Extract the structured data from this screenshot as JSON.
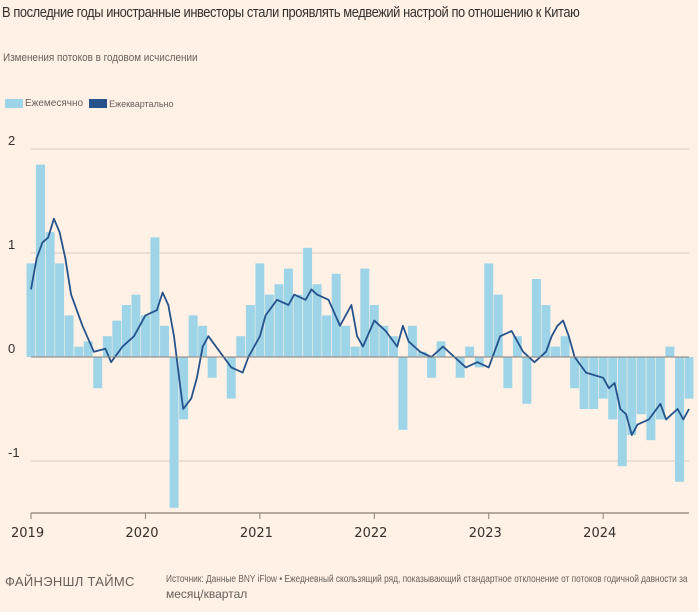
{
  "title": "В последние годы иностранные инвесторы стали проявлять медвежий настрой по отношению к Китаю",
  "subtitle": "Изменения потоков в годовом исчислении",
  "legend": {
    "monthly": "Ежемесячно",
    "quarterly": "Ежеквартально"
  },
  "footer": {
    "logo": "ФАЙНЭНШЛ ТАЙМС",
    "source_line1": "Источник: Данные BNY iFlow • Ежедневный скользящий ряд, показывающий стандартное отклонение от потоков годичной давности за",
    "source_line2": "месяц/квартал"
  },
  "colors": {
    "monthly": "#9dd4e8",
    "quarterly": "#26538b",
    "background": "#fff1e5",
    "grid": "#d9ccc1"
  },
  "chart_data": {
    "type": "bar+line",
    "title": "В последние годы иностранные инвесторы стали проявлять медвежий настрой по отношению к Китаю",
    "subtitle": "Изменения потоков в годовом исчислении",
    "xlabel": "",
    "ylabel": "",
    "xlim": [
      2019.0,
      2024.75
    ],
    "ylim": [
      -1.5,
      2
    ],
    "y_ticks": [
      2,
      1,
      0,
      -1
    ],
    "y_tick_labels": [
      "2",
      "1",
      "0",
      "-1"
    ],
    "x_ticks": [
      2019,
      2020,
      2021,
      2022,
      2023,
      2024
    ],
    "x_tick_labels": [
      "2019",
      "2020",
      "2021",
      "2022",
      "2023",
      "2024"
    ],
    "grid": true,
    "legend_position": "top-left",
    "series": [
      {
        "name": "Ежемесячно",
        "type": "bar",
        "x": [
          2019.0,
          2019.083,
          2019.167,
          2019.25,
          2019.333,
          2019.417,
          2019.5,
          2019.583,
          2019.667,
          2019.75,
          2019.833,
          2019.917,
          2020.0,
          2020.083,
          2020.167,
          2020.25,
          2020.333,
          2020.417,
          2020.5,
          2020.583,
          2020.667,
          2020.75,
          2020.833,
          2020.917,
          2021.0,
          2021.083,
          2021.167,
          2021.25,
          2021.333,
          2021.417,
          2021.5,
          2021.583,
          2021.667,
          2021.75,
          2021.833,
          2021.917,
          2022.0,
          2022.083,
          2022.167,
          2022.25,
          2022.333,
          2022.417,
          2022.5,
          2022.583,
          2022.667,
          2022.75,
          2022.833,
          2022.917,
          2023.0,
          2023.083,
          2023.167,
          2023.25,
          2023.333,
          2023.417,
          2023.5,
          2023.583,
          2023.667,
          2023.75,
          2023.833,
          2023.917,
          2024.0,
          2024.083,
          2024.167,
          2024.25,
          2024.333,
          2024.417,
          2024.5,
          2024.583,
          2024.667,
          2024.75
        ],
        "values": [
          0.9,
          1.85,
          1.2,
          0.9,
          0.4,
          0.1,
          0.15,
          -0.3,
          0.2,
          0.35,
          0.5,
          0.6,
          0.4,
          1.15,
          0.3,
          -1.45,
          -0.6,
          0.4,
          0.3,
          -0.2,
          0.0,
          -0.4,
          0.2,
          0.5,
          0.9,
          0.6,
          0.7,
          0.85,
          0.6,
          1.05,
          0.7,
          0.4,
          0.8,
          0.3,
          0.1,
          0.85,
          0.5,
          0.3,
          0.2,
          -0.7,
          0.3,
          0.05,
          -0.2,
          0.15,
          0.0,
          -0.2,
          0.1,
          -0.1,
          0.9,
          0.6,
          -0.3,
          0.2,
          -0.45,
          0.75,
          0.5,
          0.1,
          0.2,
          -0.3,
          -0.5,
          -0.5,
          -0.4,
          -0.6,
          -1.05,
          -0.75,
          -0.55,
          -0.8,
          -0.6,
          0.1,
          -1.2,
          -0.4
        ]
      },
      {
        "name": "Ежеквартально",
        "type": "line",
        "x": [
          2019.0,
          2019.05,
          2019.1,
          2019.15,
          2019.2,
          2019.25,
          2019.3,
          2019.35,
          2019.45,
          2019.55,
          2019.65,
          2019.7,
          2019.8,
          2019.9,
          2020.0,
          2020.1,
          2020.15,
          2020.2,
          2020.25,
          2020.3,
          2020.33,
          2020.4,
          2020.45,
          2020.5,
          2020.55,
          2020.65,
          2020.75,
          2020.85,
          2020.9,
          2021.0,
          2021.05,
          2021.15,
          2021.25,
          2021.3,
          2021.4,
          2021.45,
          2021.5,
          2021.6,
          2021.7,
          2021.8,
          2021.85,
          2021.9,
          2022.0,
          2022.1,
          2022.2,
          2022.25,
          2022.3,
          2022.4,
          2022.5,
          2022.6,
          2022.7,
          2022.8,
          2022.9,
          2023.0,
          2023.1,
          2023.2,
          2023.3,
          2023.4,
          2023.5,
          2023.55,
          2023.6,
          2023.65,
          2023.7,
          2023.75,
          2023.85,
          2024.0,
          2024.05,
          2024.1,
          2024.15,
          2024.2,
          2024.25,
          2024.3,
          2024.4,
          2024.5,
          2024.55,
          2024.6,
          2024.65,
          2024.7,
          2024.75
        ],
        "values": [
          0.65,
          0.95,
          1.1,
          1.15,
          1.33,
          1.2,
          0.95,
          0.6,
          0.3,
          0.05,
          0.08,
          -0.05,
          0.1,
          0.2,
          0.4,
          0.45,
          0.62,
          0.5,
          0.2,
          -0.25,
          -0.5,
          -0.4,
          -0.2,
          0.1,
          0.2,
          0.05,
          -0.1,
          -0.15,
          0.0,
          0.2,
          0.4,
          0.55,
          0.5,
          0.6,
          0.55,
          0.65,
          0.6,
          0.55,
          0.3,
          0.5,
          0.2,
          0.1,
          0.35,
          0.25,
          0.1,
          0.3,
          0.15,
          0.05,
          0.0,
          0.1,
          0.0,
          -0.1,
          -0.05,
          -0.1,
          0.2,
          0.25,
          0.05,
          -0.05,
          0.05,
          0.2,
          0.3,
          0.35,
          0.2,
          0.0,
          -0.15,
          -0.2,
          -0.3,
          -0.25,
          -0.5,
          -0.55,
          -0.75,
          -0.65,
          -0.6,
          -0.45,
          -0.6,
          -0.55,
          -0.5,
          -0.6,
          -0.5
        ]
      }
    ]
  }
}
